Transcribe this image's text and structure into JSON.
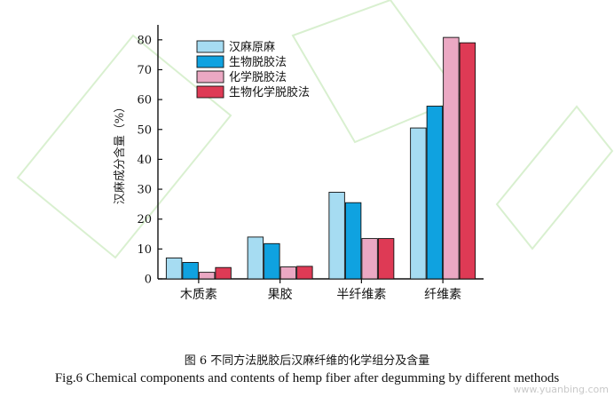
{
  "chart_data": {
    "type": "bar",
    "categories": [
      "木质素",
      "果胶",
      "半纤维素",
      "纤维素"
    ],
    "series": [
      {
        "name": "汉麻原麻",
        "color": "#a6dcf2",
        "values": [
          7.0,
          14.0,
          29.0,
          50.5
        ]
      },
      {
        "name": "生物脱胶法",
        "color": "#0fa2e0",
        "values": [
          5.5,
          11.8,
          25.5,
          57.8
        ]
      },
      {
        "name": "化学脱胶法",
        "color": "#eba8c3",
        "values": [
          2.2,
          4.0,
          13.5,
          80.8
        ]
      },
      {
        "name": "生物化学脱胶法",
        "color": "#de3a55",
        "values": [
          3.8,
          4.2,
          13.5,
          79.0
        ]
      }
    ],
    "ylabel": "汉麻成分含量（%）",
    "xlabel": "",
    "ylim": [
      0,
      85
    ],
    "yticks": [
      0,
      10,
      20,
      30,
      40,
      50,
      60,
      70,
      80
    ],
    "legend_position": "top-left",
    "grid": false
  },
  "caption": {
    "cn": "图 6  不同方法脱胶后汉麻纤维的化学组分及含量",
    "en": "Fig.6 Chemical components and contents of hemp fiber after degumming by different methods"
  },
  "watermark": "www.yuanbing.com"
}
